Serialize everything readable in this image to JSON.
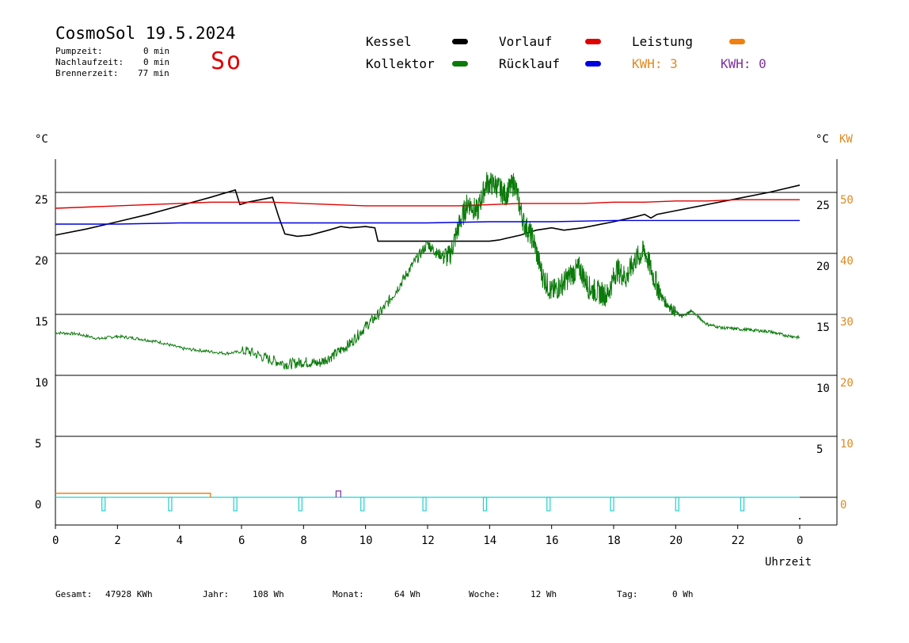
{
  "header": {
    "title": "CosmoSol 19.5.2024",
    "day": "So",
    "stats": [
      {
        "label": "Pumpzeit:",
        "value": "0 min"
      },
      {
        "label": "Nachlaufzeit:",
        "value": "0 min"
      },
      {
        "label": "Brennerzeit:",
        "value": "77 min"
      }
    ]
  },
  "legend": {
    "kessel": {
      "label": "Kessel",
      "color": "#000000"
    },
    "kollektor": {
      "label": "Kollektor",
      "color": "#0a7a0a"
    },
    "vorlauf": {
      "label": "Vorlauf",
      "color": "#e00000"
    },
    "ruecklauf": {
      "label": "Rücklauf",
      "color": "#0000e0"
    },
    "leistung": {
      "label": "Leistung",
      "color": "#f08010"
    },
    "kwh_orange": "KWH: 3",
    "kwh_purple": "KWH: 0"
  },
  "colors": {
    "orange_text": "#e08a20",
    "purple_text": "#8030a0",
    "cyan": "#20d0d0"
  },
  "chart_data": {
    "type": "line",
    "xlabel": "Uhrzeit",
    "ylabel_left": "°C",
    "ylabel_right": "°C",
    "ylabel_right2": "KW",
    "xlim": [
      0,
      24
    ],
    "ylim": [
      0,
      27.5
    ],
    "x_ticks": [
      "0",
      "2",
      "4",
      "6",
      "8",
      "10",
      "12",
      "14",
      "16",
      "18",
      "20",
      "22",
      "0"
    ],
    "y_ticks_left": [
      "0",
      "5",
      "10",
      "15",
      "20",
      "25"
    ],
    "y_ticks_right": [
      "5",
      "10",
      "15",
      "20",
      "25"
    ],
    "y_ticks_kw": [
      "0",
      "10",
      "20",
      "30",
      "40",
      "50"
    ],
    "series": [
      {
        "name": "Kessel",
        "color": "#000000",
        "x": [
          0,
          1,
          2,
          3,
          4,
          5,
          5.8,
          5.95,
          6.2,
          7.0,
          7.2,
          7.4,
          7.8,
          8.2,
          8.8,
          9.2,
          9.5,
          10.0,
          10.3,
          10.4,
          11,
          12,
          13,
          14,
          14.3,
          15,
          15.5,
          16,
          16.4,
          17,
          18,
          18.7,
          19.0,
          19.2,
          19.4,
          20,
          21,
          22,
          23,
          24
        ],
        "y": [
          21.5,
          22.0,
          22.6,
          23.2,
          23.9,
          24.6,
          25.2,
          24.0,
          24.2,
          24.6,
          23.0,
          21.6,
          21.4,
          21.5,
          21.9,
          22.2,
          22.1,
          22.2,
          22.1,
          21.0,
          21.0,
          21.0,
          21.0,
          21.0,
          21.1,
          21.5,
          21.9,
          22.1,
          21.9,
          22.1,
          22.6,
          23.0,
          23.2,
          22.9,
          23.2,
          23.5,
          24.0,
          24.5,
          25.0,
          25.6
        ]
      },
      {
        "name": "Kollektor",
        "color": "#0a7a0a",
        "x": [
          0,
          0.7,
          1.4,
          2.0,
          2.7,
          3.4,
          4.1,
          4.8,
          5.5,
          6.2,
          6.9,
          7.5,
          8.0,
          8.5,
          9.0,
          9.5,
          10.0,
          10.5,
          11.0,
          11.5,
          12.0,
          12.3,
          12.7,
          13.0,
          13.3,
          13.6,
          13.9,
          14.2,
          14.5,
          14.8,
          15.1,
          15.4,
          15.7,
          16.0,
          16.3,
          16.6,
          16.9,
          17.2,
          17.5,
          17.8,
          18.1,
          18.4,
          18.7,
          19.0,
          19.3,
          19.6,
          19.9,
          20.2,
          20.5,
          21.0,
          21.5,
          22.0,
          22.5,
          23.0,
          23.5,
          24.0
        ],
        "y": [
          13.5,
          13.4,
          13.0,
          13.2,
          13.0,
          12.7,
          12.2,
          12.0,
          11.8,
          12.0,
          11.3,
          10.9,
          11.1,
          11.0,
          11.7,
          12.6,
          14.0,
          15.2,
          17.0,
          19.0,
          20.8,
          20.0,
          19.7,
          22.2,
          24.2,
          23.4,
          25.8,
          25.6,
          24.8,
          25.8,
          22.5,
          21.2,
          18.2,
          16.8,
          17.4,
          18.2,
          18.8,
          17.2,
          16.8,
          16.6,
          18.7,
          18.0,
          19.5,
          20.2,
          18.0,
          16.2,
          15.4,
          14.8,
          15.3,
          14.2,
          13.9,
          13.8,
          13.7,
          13.6,
          13.3,
          13.1
        ]
      },
      {
        "name": "Vorlauf",
        "color": "#e00000",
        "x": [
          0,
          1,
          2,
          3,
          4,
          5,
          6,
          7,
          8,
          9,
          10,
          11,
          12,
          13,
          14,
          15,
          16,
          17,
          18,
          19,
          20,
          21,
          22,
          23,
          24
        ],
        "y": [
          23.7,
          23.8,
          23.9,
          24.0,
          24.1,
          24.2,
          24.2,
          24.2,
          24.1,
          24.0,
          23.9,
          23.9,
          23.9,
          23.9,
          24.0,
          24.1,
          24.1,
          24.1,
          24.2,
          24.2,
          24.3,
          24.3,
          24.4,
          24.4,
          24.4
        ]
      },
      {
        "name": "Rücklauf",
        "color": "#0000e0",
        "x": [
          0,
          2,
          4,
          6,
          8,
          10,
          12,
          14,
          16,
          18,
          20,
          22,
          24
        ],
        "y": [
          22.4,
          22.4,
          22.5,
          22.5,
          22.5,
          22.5,
          22.5,
          22.6,
          22.6,
          22.7,
          22.7,
          22.7,
          22.7
        ]
      },
      {
        "name": "Leistung",
        "color": "#f08010",
        "x": [
          0,
          5.0,
          5.0
        ],
        "y": [
          0.2,
          0.2,
          0
        ]
      }
    ]
  },
  "footer": {
    "gesamt_label": "Gesamt:",
    "gesamt_value": "47928 KWh",
    "jahr_label": "Jahr:",
    "jahr_value": "108 Wh",
    "monat_label": "Monat:",
    "monat_value": "64 Wh",
    "woche_label": "Woche:",
    "woche_value": "12 Wh",
    "tag_label": "Tag:",
    "tag_value": "0 Wh"
  }
}
